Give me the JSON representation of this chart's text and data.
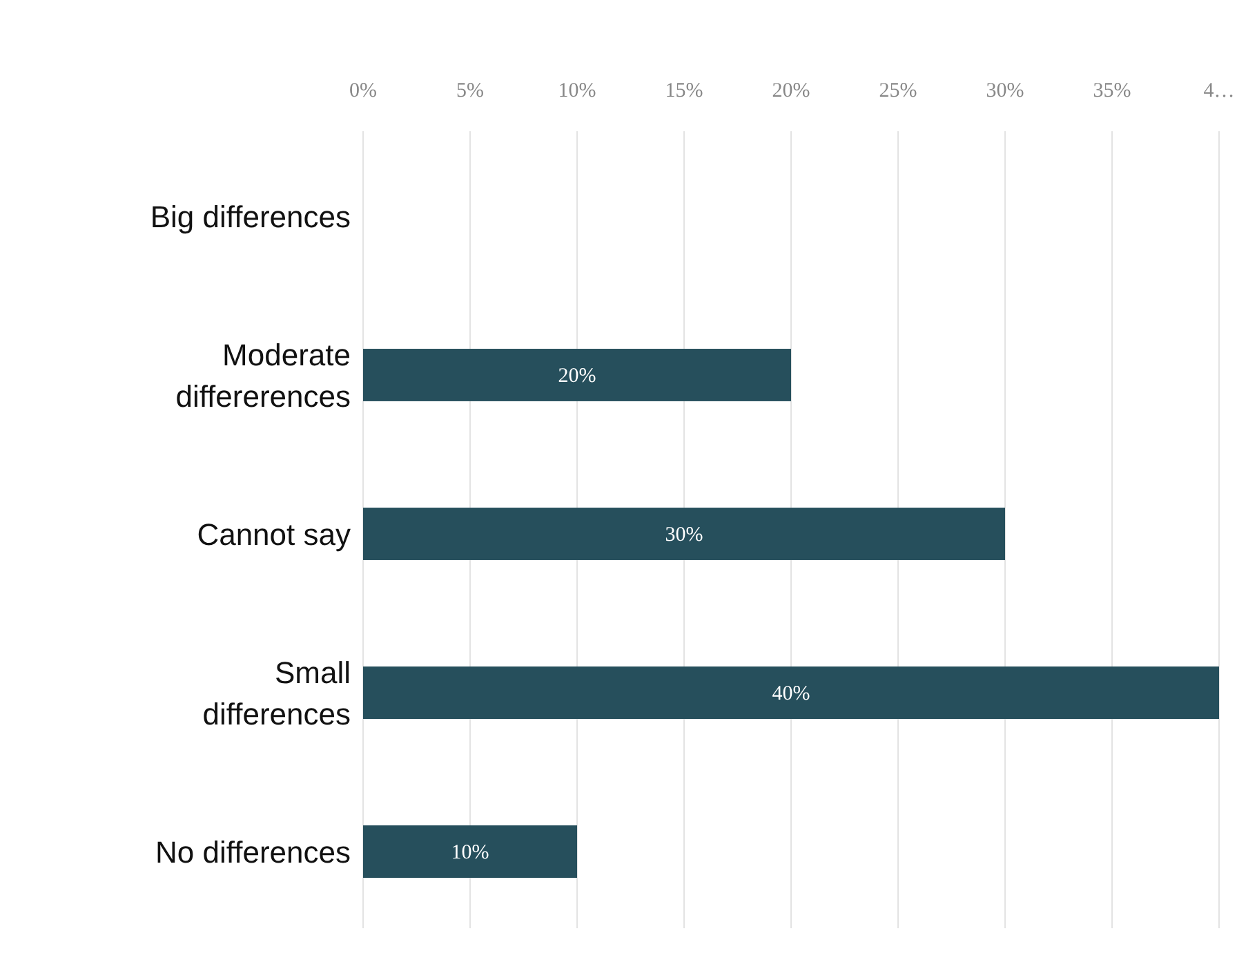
{
  "chart_data": {
    "type": "bar",
    "orientation": "horizontal",
    "categories": [
      "Big differences",
      "Moderate differerences",
      "Cannot say",
      "Small differences",
      "No differences"
    ],
    "values": [
      0,
      20,
      30,
      40,
      10
    ],
    "value_labels": [
      null,
      "20%",
      "30%",
      "40%",
      "10%"
    ],
    "color": "#264f5c",
    "xlim": [
      0,
      40
    ],
    "xticks": [
      {
        "value": 0,
        "label": "0%"
      },
      {
        "value": 5,
        "label": "5%"
      },
      {
        "value": 10,
        "label": "10%"
      },
      {
        "value": 15,
        "label": "15%"
      },
      {
        "value": 20,
        "label": "20%"
      },
      {
        "value": 25,
        "label": "25%"
      },
      {
        "value": 30,
        "label": "30%"
      },
      {
        "value": 35,
        "label": "35%"
      },
      {
        "value": 40,
        "label": "4…"
      }
    ],
    "grid": "x"
  }
}
